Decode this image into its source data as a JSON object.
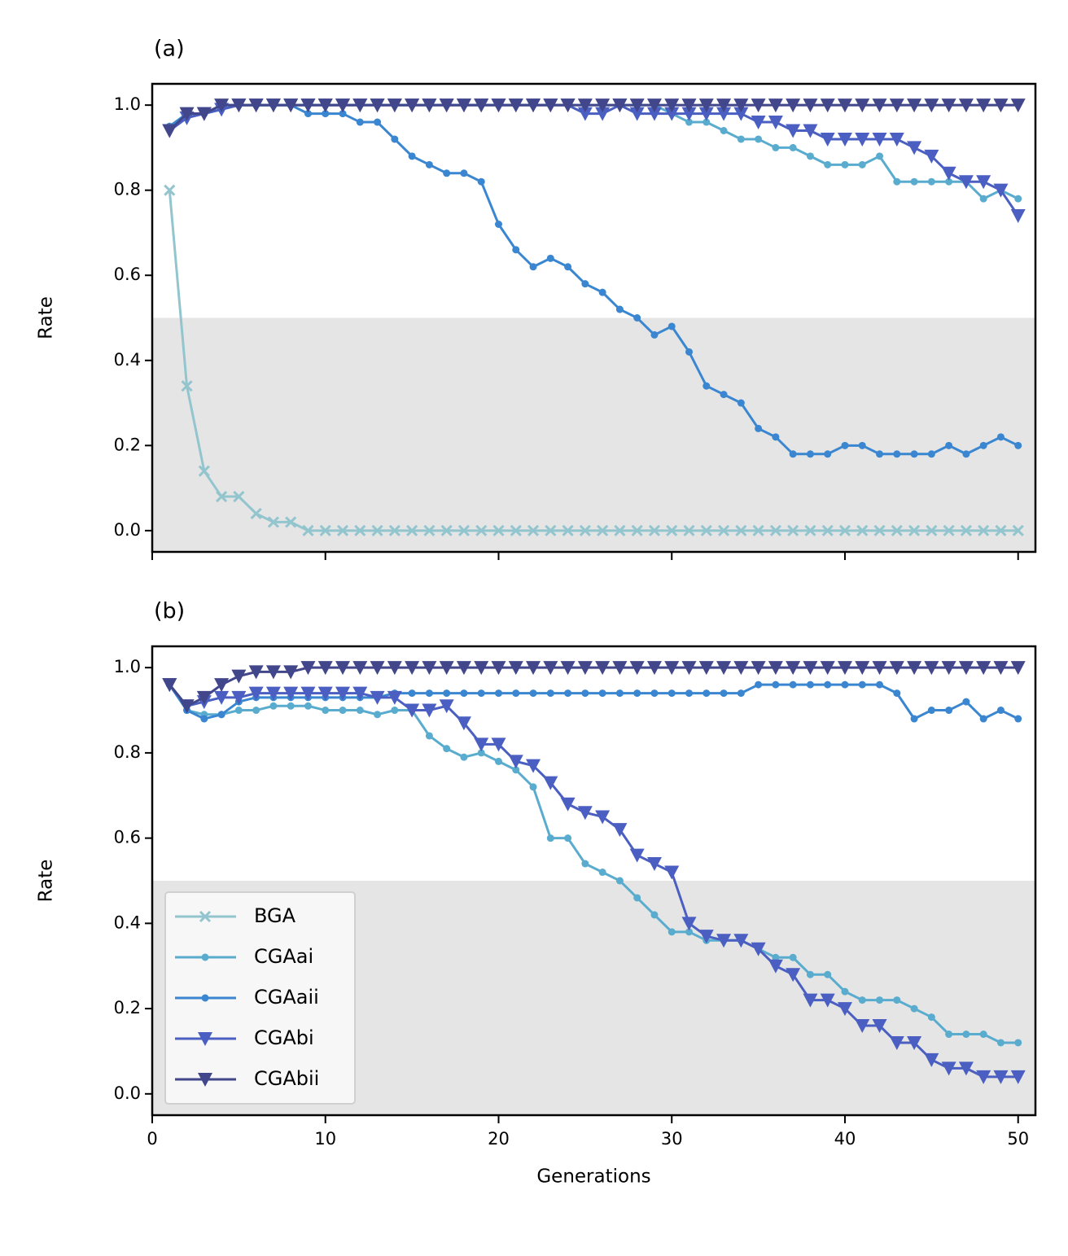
{
  "chart_data": [
    {
      "type": "line",
      "title": "(a)",
      "ylabel": "Rate",
      "x": [
        1,
        2,
        3,
        4,
        5,
        6,
        7,
        8,
        9,
        10,
        11,
        12,
        13,
        14,
        15,
        16,
        17,
        18,
        19,
        20,
        21,
        22,
        23,
        24,
        25,
        26,
        27,
        28,
        29,
        30,
        31,
        32,
        33,
        34,
        35,
        36,
        37,
        38,
        39,
        40,
        41,
        42,
        43,
        44,
        45,
        46,
        47,
        48,
        49,
        50
      ],
      "xlim": [
        0,
        51
      ],
      "xticks": [
        0,
        10,
        20,
        30,
        40,
        50
      ],
      "xtick_labels": false,
      "ylim": [
        -0.05,
        1.05
      ],
      "yticks": [
        {
          "value": 0,
          "label": "0.0"
        },
        0.2,
        0.4,
        0.6,
        0.8,
        {
          "value": 1,
          "label": "1.0"
        }
      ],
      "shade_below": 0.5,
      "shade_color": "#e5e5e5",
      "series": [
        {
          "name": "BGA",
          "color": "#92c5ce",
          "marker": "x",
          "values": [
            0.8,
            0.34,
            0.14,
            0.08,
            0.08,
            0.04,
            0.02,
            0.02,
            0,
            0,
            0,
            0,
            0,
            0,
            0,
            0,
            0,
            0,
            0,
            0,
            0,
            0,
            0,
            0,
            0,
            0,
            0,
            0,
            0,
            0,
            0,
            0,
            0,
            0,
            0,
            0,
            0,
            0,
            0,
            0,
            0,
            0,
            0,
            0,
            0,
            0,
            0,
            0,
            0,
            0
          ]
        },
        {
          "name": "CGAai",
          "color": "#5aaccf",
          "marker": "dot",
          "values": [
            0.95,
            0.98,
            0.98,
            0.99,
            1,
            1,
            1,
            1,
            1,
            1,
            1,
            1,
            1,
            1,
            1,
            1,
            1,
            1,
            1,
            1,
            1,
            1,
            1,
            1,
            1,
            1,
            1,
            1,
            1,
            0.98,
            0.96,
            0.96,
            0.94,
            0.92,
            0.92,
            0.9,
            0.9,
            0.88,
            0.86,
            0.86,
            0.86,
            0.88,
            0.82,
            0.82,
            0.82,
            0.82,
            0.82,
            0.78,
            0.8,
            0.78
          ]
        },
        {
          "name": "CGAaii",
          "color": "#3a86d0",
          "marker": "dot",
          "values": [
            0.95,
            0.98,
            0.98,
            1,
            1,
            1,
            1,
            1,
            0.98,
            0.98,
            0.98,
            0.96,
            0.96,
            0.92,
            0.88,
            0.86,
            0.84,
            0.84,
            0.82,
            0.72,
            0.66,
            0.62,
            0.64,
            0.62,
            0.58,
            0.56,
            0.52,
            0.5,
            0.46,
            0.48,
            0.42,
            0.34,
            0.32,
            0.3,
            0.24,
            0.22,
            0.18,
            0.18,
            0.18,
            0.2,
            0.2,
            0.18,
            0.18,
            0.18,
            0.18,
            0.2,
            0.18,
            0.2,
            0.22,
            0.2
          ]
        },
        {
          "name": "CGAbi",
          "color": "#4a5fc1",
          "marker": "tri",
          "values": [
            0.94,
            0.97,
            0.98,
            0.99,
            1,
            1,
            1,
            1,
            1,
            1,
            1,
            1,
            1,
            1,
            1,
            1,
            1,
            1,
            1,
            1,
            1,
            1,
            1,
            1,
            0.98,
            0.98,
            1,
            0.98,
            0.98,
            0.98,
            0.98,
            0.98,
            0.98,
            0.98,
            0.96,
            0.96,
            0.94,
            0.94,
            0.92,
            0.92,
            0.92,
            0.92,
            0.92,
            0.9,
            0.88,
            0.84,
            0.82,
            0.82,
            0.8,
            0.74
          ]
        },
        {
          "name": "CGAbii",
          "color": "#42468a",
          "marker": "tri",
          "values": [
            0.94,
            0.98,
            0.98,
            1,
            1,
            1,
            1,
            1,
            1,
            1,
            1,
            1,
            1,
            1,
            1,
            1,
            1,
            1,
            1,
            1,
            1,
            1,
            1,
            1,
            1,
            1,
            1,
            1,
            1,
            1,
            1,
            1,
            1,
            1,
            1,
            1,
            1,
            1,
            1,
            1,
            1,
            1,
            1,
            1,
            1,
            1,
            1,
            1,
            1,
            1
          ]
        }
      ]
    },
    {
      "type": "line",
      "title": "(b)",
      "ylabel": "Rate",
      "xlabel": "Generations",
      "legend": "lower left",
      "x": [
        1,
        2,
        3,
        4,
        5,
        6,
        7,
        8,
        9,
        10,
        11,
        12,
        13,
        14,
        15,
        16,
        17,
        18,
        19,
        20,
        21,
        22,
        23,
        24,
        25,
        26,
        27,
        28,
        29,
        30,
        31,
        32,
        33,
        34,
        35,
        36,
        37,
        38,
        39,
        40,
        41,
        42,
        43,
        44,
        45,
        46,
        47,
        48,
        49,
        50
      ],
      "xlim": [
        0,
        51
      ],
      "xticks": [
        0,
        10,
        20,
        30,
        40,
        50
      ],
      "xtick_labels": true,
      "ylim": [
        -0.05,
        1.05
      ],
      "yticks": [
        {
          "value": 0,
          "label": "0.0"
        },
        0.2,
        0.4,
        0.6,
        0.8,
        {
          "value": 1,
          "label": "1.0"
        }
      ],
      "shade_below": 0.5,
      "shade_color": "#e5e5e5",
      "series": [
        {
          "name": "BGA",
          "color": "#92c5ce",
          "marker": "x",
          "values": [
            null,
            null,
            null,
            null,
            null,
            null,
            null,
            null,
            null,
            null,
            null,
            null,
            null,
            null,
            null,
            null,
            null,
            null,
            null,
            null,
            null,
            null,
            null,
            null,
            null,
            null,
            null,
            null,
            null,
            null,
            null,
            null,
            null,
            null,
            null,
            null,
            null,
            null,
            null,
            null,
            null,
            null,
            null,
            null,
            null,
            null,
            null,
            null,
            null,
            null
          ]
        },
        {
          "name": "CGAai",
          "color": "#5aaccf",
          "marker": "dot",
          "values": [
            0.96,
            0.9,
            0.89,
            0.89,
            0.9,
            0.9,
            0.91,
            0.91,
            0.91,
            0.9,
            0.9,
            0.9,
            0.89,
            0.9,
            0.9,
            0.84,
            0.81,
            0.79,
            0.8,
            0.78,
            0.76,
            0.72,
            0.6,
            0.6,
            0.54,
            0.52,
            0.5,
            0.46,
            0.42,
            0.38,
            0.38,
            0.36,
            0.36,
            0.36,
            0.34,
            0.32,
            0.32,
            0.28,
            0.28,
            0.24,
            0.22,
            0.22,
            0.22,
            0.2,
            0.18,
            0.14,
            0.14,
            0.14,
            0.12,
            0.12
          ]
        },
        {
          "name": "CGAaii",
          "color": "#3a86d0",
          "marker": "dot",
          "values": [
            0.96,
            0.9,
            0.88,
            0.89,
            0.92,
            0.93,
            0.93,
            0.93,
            0.93,
            0.93,
            0.93,
            0.93,
            0.93,
            0.94,
            0.94,
            0.94,
            0.94,
            0.94,
            0.94,
            0.94,
            0.94,
            0.94,
            0.94,
            0.94,
            0.94,
            0.94,
            0.94,
            0.94,
            0.94,
            0.94,
            0.94,
            0.94,
            0.94,
            0.94,
            0.96,
            0.96,
            0.96,
            0.96,
            0.96,
            0.96,
            0.96,
            0.96,
            0.94,
            0.88,
            0.9,
            0.9,
            0.92,
            0.88,
            0.9,
            0.88
          ]
        },
        {
          "name": "CGAbi",
          "color": "#4a5fc1",
          "marker": "tri",
          "values": [
            0.96,
            0.91,
            0.92,
            0.93,
            0.93,
            0.94,
            0.94,
            0.94,
            0.94,
            0.94,
            0.94,
            0.94,
            0.93,
            0.93,
            0.9,
            0.9,
            0.91,
            0.87,
            0.82,
            0.82,
            0.78,
            0.77,
            0.73,
            0.68,
            0.66,
            0.65,
            0.62,
            0.56,
            0.54,
            0.52,
            0.4,
            0.37,
            0.36,
            0.36,
            0.34,
            0.3,
            0.28,
            0.22,
            0.22,
            0.2,
            0.16,
            0.16,
            0.12,
            0.12,
            0.08,
            0.06,
            0.06,
            0.04,
            0.04,
            0.04
          ]
        },
        {
          "name": "CGAbii",
          "color": "#42468a",
          "marker": "tri",
          "values": [
            0.96,
            0.91,
            0.93,
            0.96,
            0.98,
            0.99,
            0.99,
            0.99,
            1,
            1,
            1,
            1,
            1,
            1,
            1,
            1,
            1,
            1,
            1,
            1,
            1,
            1,
            1,
            1,
            1,
            1,
            1,
            1,
            1,
            1,
            1,
            1,
            1,
            1,
            1,
            1,
            1,
            1,
            1,
            1,
            1,
            1,
            1,
            1,
            1,
            1,
            1,
            1,
            1,
            1
          ]
        }
      ]
    }
  ]
}
